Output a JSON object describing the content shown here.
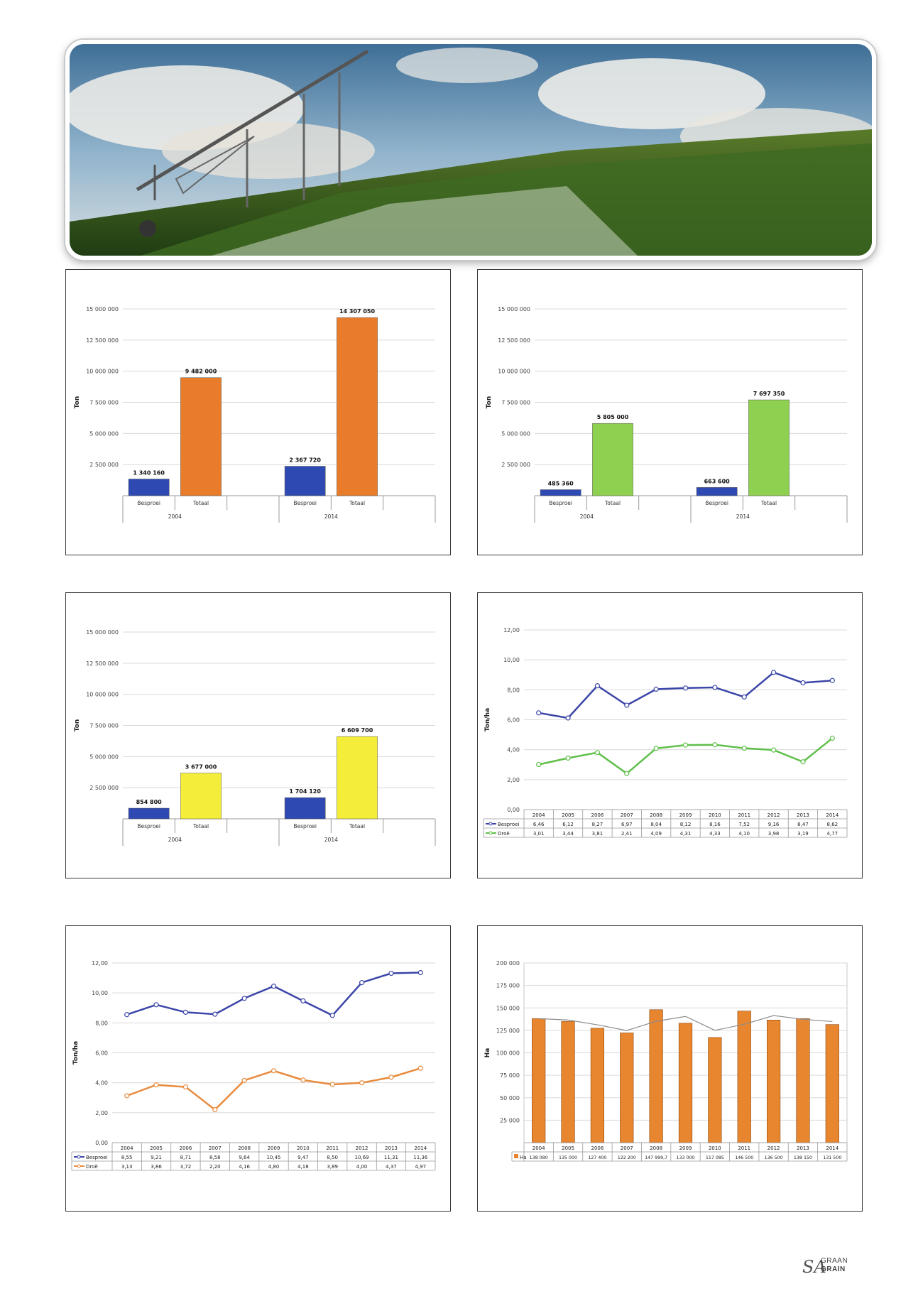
{
  "colors": {
    "besproei": "#2f49b3",
    "totaal_orange": "#e87c2b",
    "totaal_green": "#8ed04f",
    "totaal_yellow": "#f4ee3a",
    "line_besproei": "#3c46a8",
    "line_droe_green": "#5fbf4a",
    "line_droe_orange": "#e88a3c",
    "ha_bar": "#e8862f",
    "ha_line": "#8c8c8c"
  },
  "logo": {
    "sa": "SA",
    "graan": "GRAAN",
    "grain": "GRAIN"
  },
  "chart_data": [
    {
      "id": "chart1",
      "type": "bar",
      "ylabel": "Ton",
      "ylim": [
        0,
        15000000
      ],
      "yticks": [
        "15 000 000",
        "12 500 000",
        "10 000 000",
        "7 500 000",
        "5 000 000",
        "2 500 000"
      ],
      "groups": [
        {
          "year": "2004",
          "bars": [
            {
              "label": "Besproei",
              "value": 1340160,
              "value_label": "1 340 160",
              "color": "#2f49b3"
            },
            {
              "label": "Totaal",
              "value": 9482000,
              "value_label": "9 482 000",
              "color": "#e87c2b"
            }
          ]
        },
        {
          "year": "2014",
          "bars": [
            {
              "label": "Besproei",
              "value": 2367720,
              "value_label": "2 367 720",
              "color": "#2f49b3"
            },
            {
              "label": "Totaal",
              "value": 14307050,
              "value_label": "14 307 050",
              "color": "#e87c2b"
            }
          ]
        }
      ]
    },
    {
      "id": "chart2",
      "type": "bar",
      "ylabel": "Ton",
      "ylim": [
        0,
        15000000
      ],
      "yticks": [
        "15 000 000",
        "12 500 000",
        "10 000 000",
        "7 500 000",
        "5 000 000",
        "2 500 000"
      ],
      "groups": [
        {
          "year": "2004",
          "bars": [
            {
              "label": "Besproei",
              "value": 485360,
              "value_label": "485 360",
              "color": "#2f49b3"
            },
            {
              "label": "Totaal",
              "value": 5805000,
              "value_label": "5 805 000",
              "color": "#8ed04f"
            }
          ]
        },
        {
          "year": "2014",
          "bars": [
            {
              "label": "Besproei",
              "value": 663600,
              "value_label": "663 600",
              "color": "#2f49b3"
            },
            {
              "label": "Totaal",
              "value": 7697350,
              "value_label": "7 697 350",
              "color": "#8ed04f"
            }
          ]
        }
      ]
    },
    {
      "id": "chart3",
      "type": "bar",
      "ylabel": "Ton",
      "ylim": [
        0,
        15000000
      ],
      "yticks": [
        "15 000 000",
        "12 500 000",
        "10 000 000",
        "7 500 000",
        "5 000 000",
        "2 500 000"
      ],
      "groups": [
        {
          "year": "2004",
          "bars": [
            {
              "label": "Besproei",
              "value": 854800,
              "value_label": "854 800",
              "color": "#2f49b3"
            },
            {
              "label": "Totaal",
              "value": 3677000,
              "value_label": "3 677 000",
              "color": "#f4ee3a"
            }
          ]
        },
        {
          "year": "2014",
          "bars": [
            {
              "label": "Besproei",
              "value": 1704120,
              "value_label": "1 704 120",
              "color": "#2f49b3"
            },
            {
              "label": "Totaal",
              "value": 6609700,
              "value_label": "6 609 700",
              "color": "#f4ee3a"
            }
          ]
        }
      ]
    },
    {
      "id": "chart4",
      "type": "line",
      "ylabel": "Ton/ha",
      "ylim": [
        0,
        12
      ],
      "yticks": [
        "12,00",
        "10,00",
        "8,00",
        "6,00",
        "4,00",
        "2,00",
        "0,00"
      ],
      "categories": [
        "2004",
        "2005",
        "2006",
        "2007",
        "2008",
        "2009",
        "2010",
        "2011",
        "2012",
        "2013",
        "2014"
      ],
      "series": [
        {
          "name": "Besproei",
          "color": "#3c46a8",
          "values": [
            6.46,
            6.12,
            8.27,
            6.97,
            8.04,
            8.12,
            8.16,
            7.52,
            9.16,
            8.47,
            8.62
          ],
          "labels": [
            "6,46",
            "6,12",
            "8,27",
            "6,97",
            "8,04",
            "8,12",
            "8,16",
            "7,52",
            "9,16",
            "8,47",
            "8,62"
          ]
        },
        {
          "name": "Droë",
          "color": "#5fbf4a",
          "values": [
            3.01,
            3.44,
            3.81,
            2.41,
            4.09,
            4.31,
            4.33,
            4.1,
            3.98,
            3.19,
            4.77
          ],
          "labels": [
            "3,01",
            "3,44",
            "3,81",
            "2,41",
            "4,09",
            "4,31",
            "4,33",
            "4,10",
            "3,98",
            "3,19",
            "4,77"
          ]
        }
      ]
    },
    {
      "id": "chart5",
      "type": "line",
      "ylabel": "Ton/ha",
      "ylim": [
        0,
        12
      ],
      "yticks": [
        "12,00",
        "10,00",
        "8,00",
        "6,00",
        "4,00",
        "2,00",
        "0,00"
      ],
      "categories": [
        "2004",
        "2005",
        "2006",
        "2007",
        "2008",
        "2009",
        "2010",
        "2011",
        "2012",
        "2013",
        "2014"
      ],
      "series": [
        {
          "name": "Besproei",
          "color": "#3c46a8",
          "values": [
            8.55,
            9.21,
            8.71,
            8.58,
            9.64,
            10.45,
            9.47,
            8.5,
            10.69,
            11.31,
            11.36
          ],
          "labels": [
            "8,55",
            "9,21",
            "8,71",
            "8,58",
            "9,64",
            "10,45",
            "9,47",
            "8,50",
            "10,69",
            "11,31",
            "11,36"
          ]
        },
        {
          "name": "Droë",
          "color": "#e88a3c",
          "values": [
            3.13,
            3.86,
            3.72,
            2.2,
            4.16,
            4.8,
            4.18,
            3.89,
            4.0,
            4.37,
            4.97
          ],
          "labels": [
            "3,13",
            "3,86",
            "3,72",
            "2,20",
            "4,16",
            "4,80",
            "4,18",
            "3,89",
            "4,00",
            "4,37",
            "4,97"
          ]
        }
      ]
    },
    {
      "id": "chart6",
      "type": "bar",
      "ylabel": "Ha",
      "ylim": [
        0,
        200000
      ],
      "yticks": [
        "200 000",
        "175 000",
        "150 000",
        "125 000",
        "100 000",
        "75 000",
        "50 000",
        "25 000"
      ],
      "categories": [
        "2004",
        "2005",
        "2006",
        "2007",
        "2008",
        "2009",
        "2010",
        "2011",
        "2012",
        "2013",
        "2014"
      ],
      "series": [
        {
          "name": "Ha",
          "color": "#e8862f",
          "values": [
            138080,
            135000,
            127400,
            122200,
            147999.7,
            133000,
            117085,
            146500,
            136500,
            138150,
            131500
          ],
          "labels": [
            "138 080",
            "135 000",
            "127 400",
            "122 200",
            "147 999,7",
            "133 000",
            "117 085",
            "146 500",
            "136 500",
            "138 150",
            "131 500"
          ]
        }
      ]
    }
  ]
}
